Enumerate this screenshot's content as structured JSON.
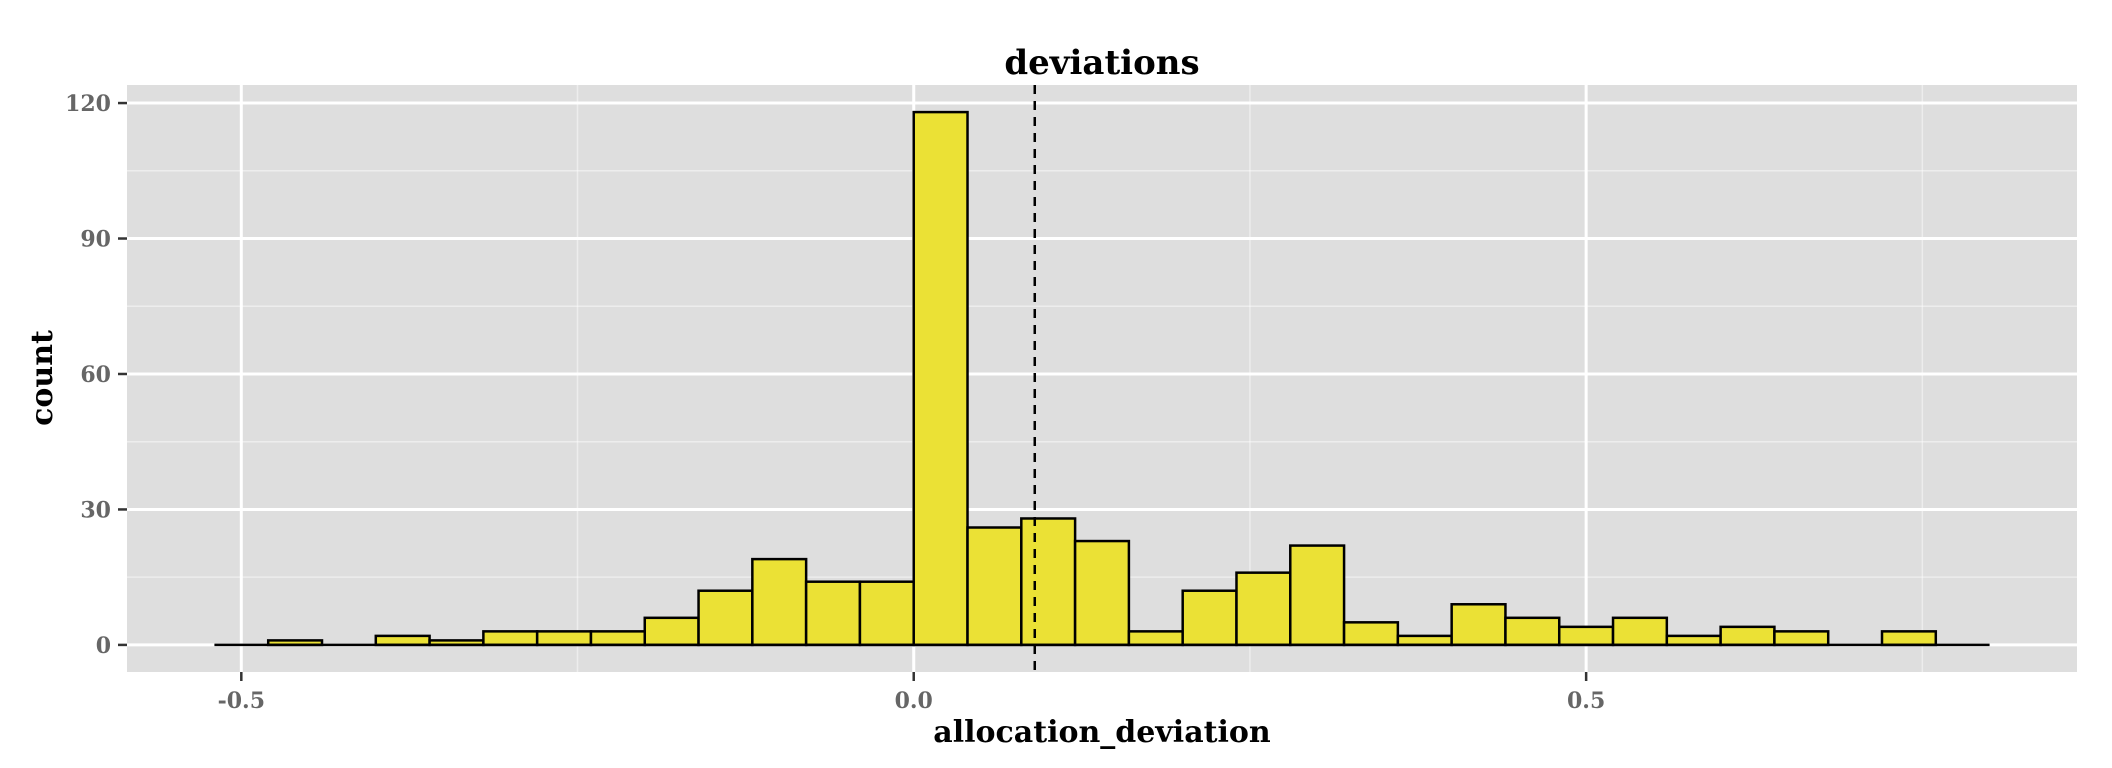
{
  "chart_data": {
    "type": "bar",
    "title": "deviations",
    "xlabel": "allocation_deviation",
    "ylabel": "count",
    "xlim": [
      -0.585,
      0.865
    ],
    "ylim": [
      -6,
      124
    ],
    "x_ticks": [
      -0.5,
      0.0,
      0.5
    ],
    "x_tick_labels": [
      "-0.5",
      "0.0",
      "0.5"
    ],
    "y_ticks": [
      0,
      30,
      60,
      90,
      120
    ],
    "y_tick_labels": [
      "0",
      "30",
      "60",
      "90",
      "120"
    ],
    "bin_width": 0.04,
    "bin_starts": [
      -0.52,
      -0.48,
      -0.44,
      -0.4,
      -0.36,
      -0.32,
      -0.28,
      -0.24,
      -0.2,
      -0.16,
      -0.12,
      -0.08,
      -0.04,
      0.0,
      0.04,
      0.08,
      0.12,
      0.16,
      0.2,
      0.24,
      0.28,
      0.32,
      0.36,
      0.4,
      0.44,
      0.48,
      0.52,
      0.56,
      0.6,
      0.64,
      0.68,
      0.72,
      0.76
    ],
    "values": [
      0,
      1,
      0,
      2,
      1,
      3,
      3,
      3,
      6,
      12,
      19,
      14,
      14,
      118,
      26,
      28,
      23,
      3,
      12,
      16,
      22,
      5,
      2,
      9,
      6,
      4,
      6,
      2,
      4,
      3,
      0,
      3,
      0
    ],
    "mean_line_x": 0.09,
    "bar_fill": "#EBE135",
    "bar_stroke": "#000000",
    "panel_background": "#DEDEDE",
    "grid": true,
    "grid_color": "#FFFFFF"
  }
}
